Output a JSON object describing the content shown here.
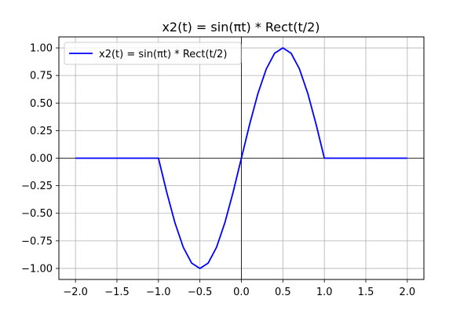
{
  "chart_data": {
    "type": "line",
    "title": "x2(t) = sin(πt) * Rect(t/2)",
    "xlabel": "",
    "ylabel": "",
    "xlim": [
      -2.2,
      2.2
    ],
    "ylim": [
      -1.1,
      1.1
    ],
    "grid": true,
    "legend_position": "top-left",
    "x_ticks": [
      -2.0,
      -1.5,
      -1.0,
      -0.5,
      0.0,
      0.5,
      1.0,
      1.5,
      2.0
    ],
    "x_tick_labels": [
      "−2.0",
      "−1.5",
      "−1.0",
      "−0.5",
      "0.0",
      "0.5",
      "1.0",
      "1.5",
      "2.0"
    ],
    "y_ticks": [
      -1.0,
      -0.75,
      -0.5,
      -0.25,
      0.0,
      0.25,
      0.5,
      0.75,
      1.0
    ],
    "y_tick_labels": [
      "−1.00",
      "−0.75",
      "−0.50",
      "−0.25",
      "0.00",
      "0.25",
      "0.50",
      "0.75",
      "1.00"
    ],
    "reference_lines": {
      "x": 0,
      "y": 0,
      "color": "#000000"
    },
    "series": [
      {
        "name": "x2(t) = sin(πt) * Rect(t/2)",
        "color": "#0000ff",
        "x": [
          -2.0,
          -1.9,
          -1.8,
          -1.7,
          -1.6,
          -1.5,
          -1.4,
          -1.3,
          -1.2,
          -1.1,
          -1.0,
          -0.9,
          -0.8,
          -0.7,
          -0.6,
          -0.5,
          -0.4,
          -0.3,
          -0.2,
          -0.1,
          0.0,
          0.1,
          0.2,
          0.3,
          0.4,
          0.5,
          0.6,
          0.7,
          0.8,
          0.9,
          1.0,
          1.1,
          1.2,
          1.3,
          1.4,
          1.5,
          1.6,
          1.7,
          1.8,
          1.9,
          2.0
        ],
        "y": [
          0,
          0,
          0,
          0,
          0,
          0,
          0,
          0,
          0,
          0,
          0,
          -0.309,
          -0.588,
          -0.809,
          -0.951,
          -1.0,
          -0.951,
          -0.809,
          -0.588,
          -0.309,
          0,
          0.309,
          0.588,
          0.809,
          0.951,
          1.0,
          0.951,
          0.809,
          0.588,
          0.309,
          0,
          0,
          0,
          0,
          0,
          0,
          0,
          0,
          0,
          0,
          0
        ]
      }
    ]
  }
}
